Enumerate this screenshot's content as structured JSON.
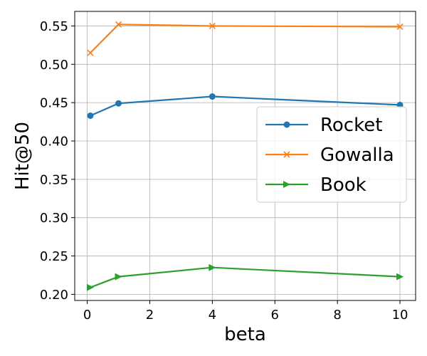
{
  "chart_data": {
    "type": "line",
    "xlabel": "beta",
    "ylabel": "Hit@50",
    "x": [
      0.1,
      1,
      4,
      10
    ],
    "xlim": [
      -0.4,
      10.5
    ],
    "ylim": [
      0.192,
      0.569
    ],
    "xticks": [
      0,
      2,
      4,
      6,
      8,
      10
    ],
    "xtick_labels": [
      "0",
      "2",
      "4",
      "6",
      "8",
      "10"
    ],
    "yticks": [
      0.2,
      0.25,
      0.3,
      0.35,
      0.4,
      0.45,
      0.5,
      0.55
    ],
    "ytick_labels": [
      "0.20",
      "0.25",
      "0.30",
      "0.35",
      "0.40",
      "0.45",
      "0.50",
      "0.55"
    ],
    "grid": true,
    "legend_position": "center-right",
    "series": [
      {
        "name": "Rocket",
        "values": [
          0.433,
          0.449,
          0.458,
          0.447
        ],
        "color": "#1f77b4",
        "marker": "circle"
      },
      {
        "name": "Gowalla",
        "values": [
          0.515,
          0.552,
          0.55,
          0.549
        ],
        "color": "#ff7f0e",
        "marker": "x"
      },
      {
        "name": "Book",
        "values": [
          0.209,
          0.223,
          0.235,
          0.223
        ],
        "color": "#2ca02c",
        "marker": "triangle-right"
      }
    ]
  }
}
